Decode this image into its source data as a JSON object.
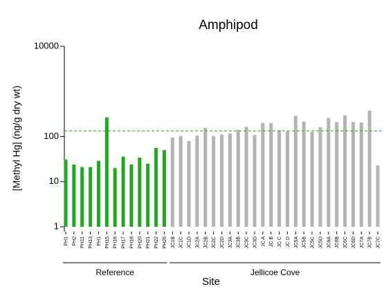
{
  "chart_data": {
    "type": "bar",
    "title": "Amphipod",
    "x_label": "Site",
    "y_label": "[Methyl Hg] (ng/g dry wt)",
    "log_scale": true,
    "ylim": [
      1,
      10000
    ],
    "yticks": [
      1,
      10,
      100,
      10000
    ],
    "reference_line": {
      "value": 134,
      "color": "#1fa81f",
      "dashed": true
    },
    "groups": [
      {
        "name": "Reference",
        "color": "#1fa81f",
        "categories": [
          "PH1",
          "PH2",
          "PH11",
          "PH13",
          "PH1",
          "PH15",
          "PH16",
          "PH17",
          "PH18",
          "PH20",
          "PH21",
          "PH22",
          "PH26"
        ],
        "values": [
          31,
          24,
          21,
          21,
          29,
          266,
          20,
          36,
          24,
          34,
          25,
          56,
          50
        ]
      },
      {
        "name": "Jellicoe Cove",
        "color": "#b3b3b3",
        "categories": [
          "JC1B",
          "JC1C",
          "JC1D",
          "JC2A",
          "JC2B",
          "JC2C",
          "JC2D",
          "JC3A",
          "JC3B",
          "JC3C",
          "JC3D",
          "JC A",
          "JC B",
          "JC C",
          "JC D",
          "JC5A",
          "JC5B",
          "JC5C",
          "JC5D",
          "JC6A",
          "JC6B",
          "JC6C",
          "JC6D",
          "JC7A",
          "JC7B",
          "JC7C"
        ],
        "values": [
          95,
          103,
          79,
          105,
          157,
          103,
          111,
          117,
          141,
          165,
          108,
          199,
          199,
          137,
          130,
          288,
          215,
          127,
          161,
          259,
          210,
          296,
          210,
          204,
          376,
          23
        ]
      }
    ]
  }
}
